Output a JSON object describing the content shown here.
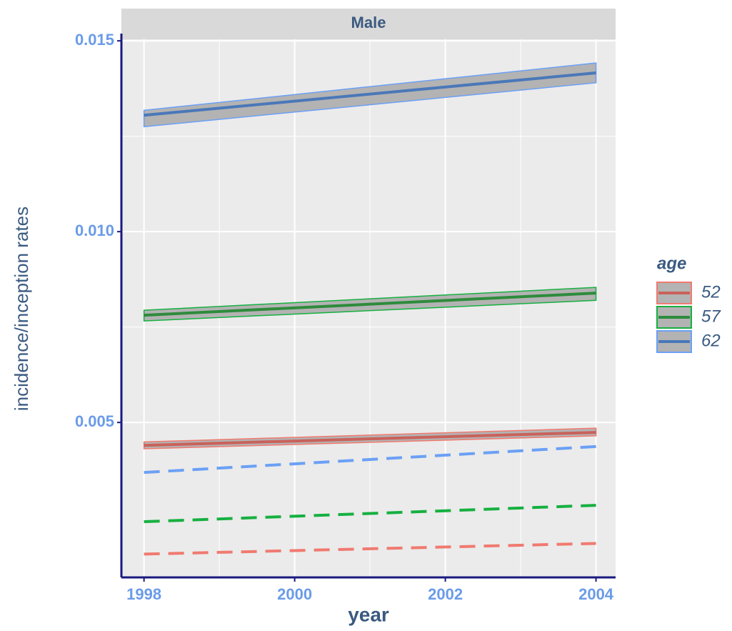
{
  "chart_data": {
    "type": "line",
    "panel_title": "Male",
    "x_label": "year",
    "y_label": "incidence/inception rates",
    "legend_title": "age",
    "x": [
      1998,
      2004
    ],
    "series": [
      {
        "name": "52",
        "color": "#c9625b",
        "band_color": "#f07a70",
        "values": [
          0.0044,
          0.00474
        ],
        "lower": [
          0.00431,
          0.00465
        ],
        "upper": [
          0.00449,
          0.00485
        ],
        "dashed_values": [
          0.00155,
          0.00183
        ]
      },
      {
        "name": "57",
        "color": "#2e8b3c",
        "band_color": "#16b040",
        "values": [
          0.00781,
          0.00839
        ],
        "lower": [
          0.00766,
          0.0082
        ],
        "upper": [
          0.00794,
          0.00854
        ],
        "dashed_values": [
          0.0024,
          0.00283
        ]
      },
      {
        "name": "62",
        "color": "#4a78b8",
        "band_color": "#6ba0f5",
        "values": [
          0.01305,
          0.01416
        ],
        "lower": [
          0.01275,
          0.0139
        ],
        "upper": [
          0.01318,
          0.01442
        ],
        "dashed_values": [
          0.00369,
          0.00437
        ]
      }
    ],
    "xlim": [
      1997.7,
      2004.26
    ],
    "ylim": [
      0.00094,
      0.01504
    ],
    "xticks": [
      1998,
      2000,
      2002,
      2004
    ],
    "yticks": [
      0.005,
      {
        "value": 0.01,
        "label": "0.010"
      },
      0.015
    ],
    "grid": true
  }
}
